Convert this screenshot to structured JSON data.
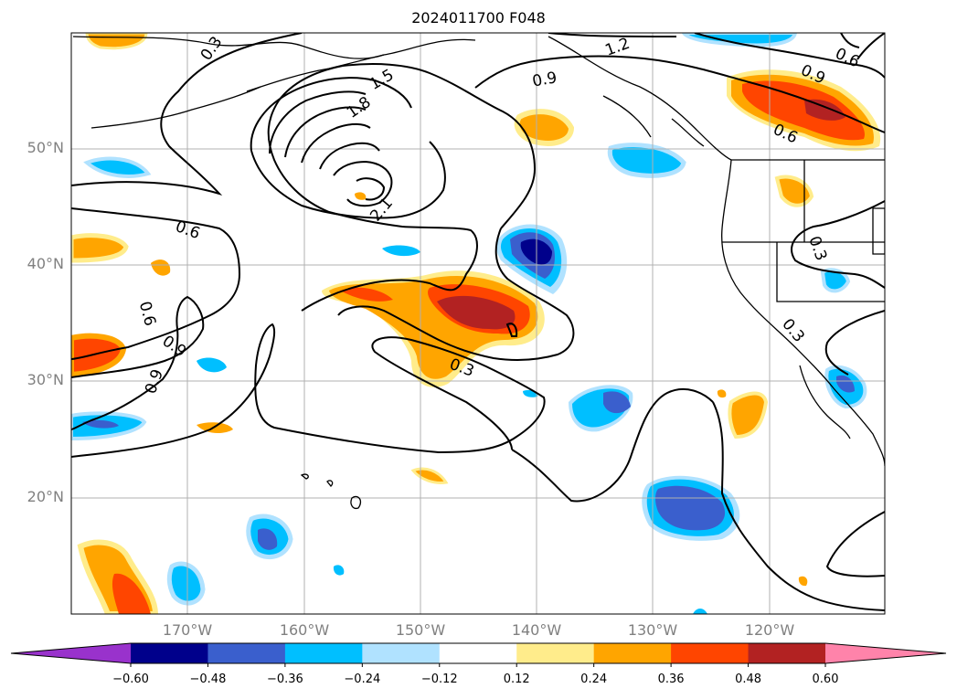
{
  "title": "2024011700 F048",
  "latitude_labels": [
    "50°N",
    "40°N",
    "30°N",
    "20°N"
  ],
  "longitude_labels": [
    "170°W",
    "160°W",
    "150°W",
    "140°W",
    "130°W",
    "120°W"
  ],
  "contour_labels": [
    "0.3",
    "0.6",
    "0.9",
    "1.2",
    "1.5",
    "1.8",
    "2.1",
    "0.9",
    "0.6",
    "0.9",
    "0.6",
    "0.9",
    "0.3",
    "0.3",
    "0.3",
    "0.6"
  ],
  "colorbar": {
    "tick_labels": [
      "−0.60",
      "−0.48",
      "−0.36",
      "−0.24",
      "−0.12",
      "0.12",
      "0.24",
      "0.36",
      "0.48",
      "0.60"
    ],
    "colors": [
      "#9932cc",
      "#00008b",
      "#3a5fcd",
      "#00bfff",
      "#b0e2ff",
      "#ffffff",
      "#ffec8b",
      "#ffa500",
      "#ff4500",
      "#b22222",
      "#ff83aa"
    ]
  },
  "chart_data": {
    "type": "heatmap",
    "title": "2024011700 F048",
    "lon_range": [
      -180,
      -110
    ],
    "lat_range": [
      10,
      60
    ],
    "contour_levels": [
      0.3,
      0.6,
      0.9,
      1.2,
      1.5,
      1.8,
      2.1
    ],
    "color_levels": [
      -0.6,
      -0.48,
      -0.36,
      -0.24,
      -0.12,
      0.12,
      0.24,
      0.36,
      0.48,
      0.6
    ],
    "grid": true,
    "colorbar_position": "bottom"
  }
}
